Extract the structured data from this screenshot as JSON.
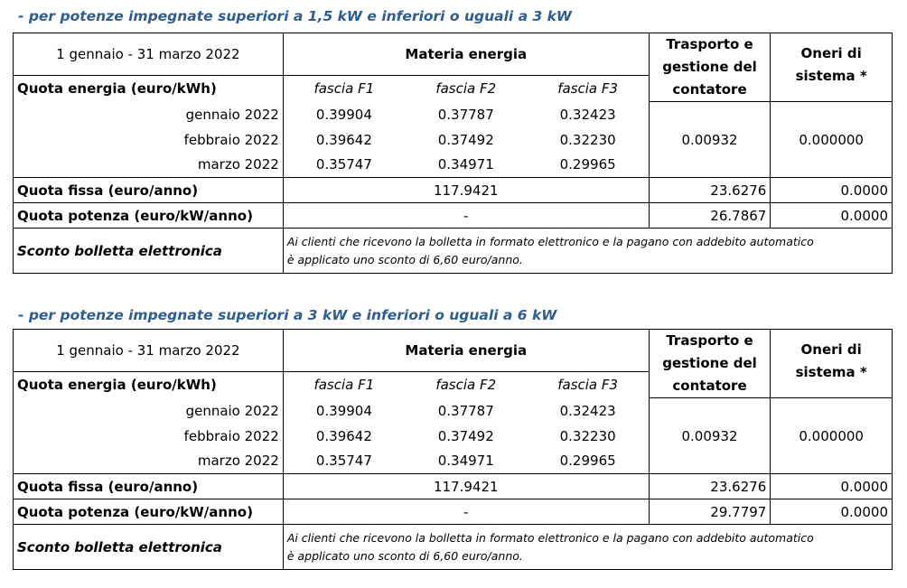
{
  "tables": [
    {
      "caption": "- per potenze impegnate superiori a 1,5 kW e inferiori o uguali a 3 kW",
      "period": "1 gennaio - 31 marzo 2022",
      "materia_header": "Materia energia",
      "trasporto_header": "Trasporto e gestione del contatore",
      "oneri_header": "Oneri di sistema *",
      "quota_energia_label": "Quota energia (euro/kWh)",
      "fasce": [
        "fascia F1",
        "fascia F2",
        "fascia F3"
      ],
      "months": [
        {
          "label": "gennaio 2022",
          "f1": "0.39904",
          "f2": "0.37787",
          "f3": "0.32423"
        },
        {
          "label": "febbraio 2022",
          "f1": "0.39642",
          "f2": "0.37492",
          "f3": "0.32230"
        },
        {
          "label": "marzo 2022",
          "f1": "0.35747",
          "f2": "0.34971",
          "f3": "0.29965"
        }
      ],
      "energia_trasporto": "0.00932",
      "energia_oneri": "0.000000",
      "quota_fissa_label": "Quota fissa (euro/anno)",
      "quota_fissa_materia": "117.9421",
      "quota_fissa_trasporto": "23.6276",
      "quota_fissa_oneri": "0.0000",
      "quota_potenza_label": "Quota potenza (euro/kW/anno)",
      "quota_potenza_materia": "-",
      "quota_potenza_trasporto": "26.7867",
      "quota_potenza_oneri": "0.0000",
      "sconto_label": "Sconto bolletta elettronica",
      "sconto_line1": "Ai clienti che ricevono la bolletta in formato elettronico e la pagano con addebito automatico",
      "sconto_line2": "è applicato uno sconto di 6,60 euro/anno."
    },
    {
      "caption": "- per potenze impegnate superiori a 3 kW e inferiori o uguali a 6 kW",
      "period": "1 gennaio - 31 marzo 2022",
      "materia_header": "Materia energia",
      "trasporto_header": "Trasporto e gestione del contatore",
      "oneri_header": "Oneri di sistema *",
      "quota_energia_label": "Quota energia (euro/kWh)",
      "fasce": [
        "fascia F1",
        "fascia F2",
        "fascia F3"
      ],
      "months": [
        {
          "label": "gennaio 2022",
          "f1": "0.39904",
          "f2": "0.37787",
          "f3": "0.32423"
        },
        {
          "label": "febbraio 2022",
          "f1": "0.39642",
          "f2": "0.37492",
          "f3": "0.32230"
        },
        {
          "label": "marzo 2022",
          "f1": "0.35747",
          "f2": "0.34971",
          "f3": "0.29965"
        }
      ],
      "energia_trasporto": "0.00932",
      "energia_oneri": "0.000000",
      "quota_fissa_label": "Quota fissa (euro/anno)",
      "quota_fissa_materia": "117.9421",
      "quota_fissa_trasporto": "23.6276",
      "quota_fissa_oneri": "0.0000",
      "quota_potenza_label": "Quota potenza (euro/kW/anno)",
      "quota_potenza_materia": "-",
      "quota_potenza_trasporto": "29.7797",
      "quota_potenza_oneri": "0.0000",
      "sconto_label": "Sconto bolletta elettronica",
      "sconto_line1": "Ai clienti che ricevono la bolletta in formato elettronico e la pagano con addebito automatico",
      "sconto_line2": "è applicato uno sconto di 6,60 euro/anno."
    }
  ]
}
